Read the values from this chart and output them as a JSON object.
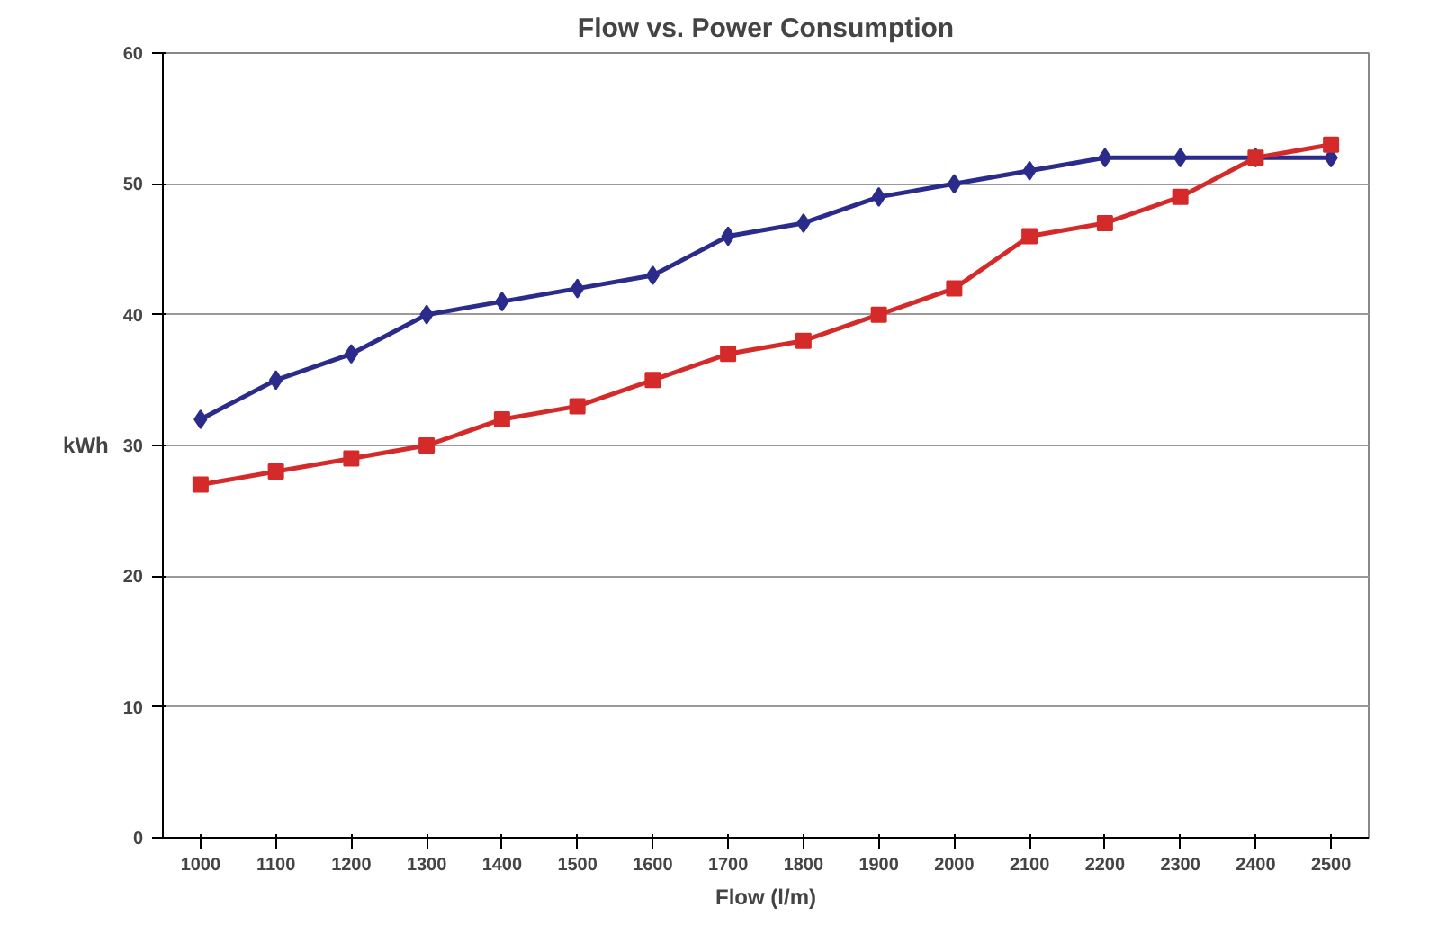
{
  "chart_data": {
    "type": "line",
    "title": "Flow vs. Power Consumption",
    "xlabel": "Flow (l/m)",
    "ylabel": "kWh",
    "categories": [
      "1000",
      "1100",
      "1200",
      "1300",
      "1400",
      "1500",
      "1600",
      "1700",
      "1800",
      "1900",
      "2000",
      "2100",
      "2200",
      "2300",
      "2400",
      "2500"
    ],
    "series": [
      {
        "color": "#2b2b8c",
        "marker": "diamond",
        "values": [
          32,
          35,
          37,
          40,
          41,
          42,
          43,
          46,
          47,
          49,
          50,
          51,
          52,
          52,
          52,
          52
        ]
      },
      {
        "color": "#d42a2a",
        "marker": "square",
        "values": [
          27,
          28,
          29,
          30,
          32,
          33,
          35,
          37,
          38,
          40,
          42,
          46,
          47,
          49,
          52,
          53
        ]
      }
    ],
    "ylim": [
      0,
      60
    ],
    "yticks": [
      0,
      10,
      20,
      30,
      40,
      50,
      60
    ],
    "grid": "y",
    "line_style": "solid"
  }
}
